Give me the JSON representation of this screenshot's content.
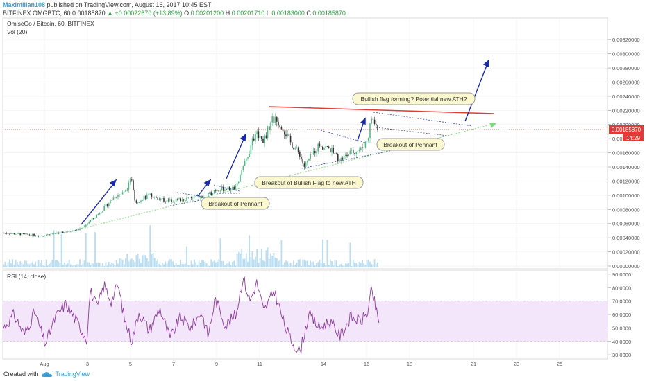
{
  "header": {
    "author": "Maximilian108",
    "published": "published on TradingView.com, August 16, 2017 10:45 EST",
    "symbol": "BITFINEX:OMGBTC, 60",
    "last": "0.00185870",
    "change": "▲ +0.00022670 (+13.89%)",
    "o_label": "O:",
    "o": "0.00201200",
    "h_label": "H:",
    "h": "0.00201710",
    "l_label": "L:",
    "l": "0.00183000",
    "c_label": "C:",
    "c": "0.00185870"
  },
  "pane": {
    "title": "OmiseGo / Bitcoin, 60, BITFINEX",
    "vol_label": "Vol (20)",
    "rsi_label": "RSI (14, close)",
    "price_tag": "0.00185870",
    "timer_tag": "14:29"
  },
  "footer": {
    "created_with": "Created with",
    "brand": "TradingView"
  },
  "colors": {
    "candle_up": "#53b987",
    "candle_down": "#333333",
    "arrow": "#1a2ba8",
    "resistance": "#e53935",
    "rsi_line": "#8e3a9e",
    "rsi_band": "#f3e5fa",
    "volume": "#a8d4ee",
    "support": "#7fdb7f",
    "price_tag": "#e53935"
  },
  "chart_data": [
    {
      "type": "candlestick",
      "x_ticks": [
        "Aug",
        "3",
        "5",
        "7",
        "9",
        "11",
        "14",
        "16",
        "18",
        "21",
        "23",
        "25"
      ],
      "y_ticks": [
        "0.00320000",
        "0.00300000",
        "0.00280000",
        "0.00260000",
        "0.00240000",
        "0.00220000",
        "0.00200000",
        "0.00180000",
        "0.00160000",
        "0.00140000",
        "0.00120000",
        "0.00100000",
        "0.00080000",
        "0.00060000",
        "0.00040000",
        "0.00020000",
        "0.00000000"
      ],
      "ylim": [
        0,
        0.0033
      ],
      "price_path": [
        [
          0,
          0.00047
        ],
        [
          60,
          0.00043
        ],
        [
          115,
          0.00052
        ],
        [
          140,
          0.00072
        ],
        [
          165,
          0.00098
        ],
        [
          180,
          0.00104
        ],
        [
          190,
          0.00124
        ],
        [
          195,
          0.0009
        ],
        [
          215,
          0.001
        ],
        [
          240,
          0.00092
        ],
        [
          260,
          0.00094
        ],
        [
          285,
          0.00098
        ],
        [
          295,
          0.00096
        ],
        [
          310,
          0.00108
        ],
        [
          340,
          0.0011
        ],
        [
          350,
          0.00138
        ],
        [
          362,
          0.0017
        ],
        [
          368,
          0.0019
        ],
        [
          380,
          0.00178
        ],
        [
          392,
          0.00208
        ],
        [
          405,
          0.002
        ],
        [
          418,
          0.00175
        ],
        [
          432,
          0.00158
        ],
        [
          438,
          0.0014
        ],
        [
          450,
          0.00158
        ],
        [
          460,
          0.00172
        ],
        [
          475,
          0.00165
        ],
        [
          490,
          0.0015
        ],
        [
          505,
          0.0016
        ],
        [
          520,
          0.00165
        ],
        [
          530,
          0.0018
        ],
        [
          535,
          0.0021
        ],
        [
          542,
          0.00198
        ],
        [
          546,
          0.00186
        ]
      ],
      "annotations": [
        "Breakout of Pennant",
        "Breakout of Bullish Flag to new ATH",
        "Bullish flag forming? Potential new ATH?",
        "Breakout of Pennant"
      ]
    },
    {
      "type": "line",
      "name": "RSI (14, close)",
      "y_ticks": [
        "90.0000",
        "80.0000",
        "70.0000",
        "60.0000",
        "50.0000",
        "40.0000",
        "30.0000"
      ],
      "ylim": [
        28,
        92
      ],
      "band": [
        40,
        70
      ],
      "values_path": [
        [
          5,
          50
        ],
        [
          20,
          60
        ],
        [
          35,
          45
        ],
        [
          50,
          62
        ],
        [
          65,
          38
        ],
        [
          80,
          58
        ],
        [
          95,
          68
        ],
        [
          110,
          55
        ],
        [
          125,
          42
        ],
        [
          130,
          78
        ],
        [
          140,
          65
        ],
        [
          150,
          82
        ],
        [
          160,
          70
        ],
        [
          170,
          82
        ],
        [
          180,
          55
        ],
        [
          190,
          40
        ],
        [
          200,
          62
        ],
        [
          215,
          48
        ],
        [
          230,
          65
        ],
        [
          245,
          42
        ],
        [
          260,
          58
        ],
        [
          275,
          50
        ],
        [
          290,
          62
        ],
        [
          300,
          44
        ],
        [
          310,
          72
        ],
        [
          325,
          52
        ],
        [
          340,
          60
        ],
        [
          350,
          88
        ],
        [
          360,
          70
        ],
        [
          370,
          84
        ],
        [
          380,
          62
        ],
        [
          395,
          78
        ],
        [
          410,
          52
        ],
        [
          420,
          40
        ],
        [
          432,
          32
        ],
        [
          445,
          60
        ],
        [
          460,
          50
        ],
        [
          475,
          55
        ],
        [
          490,
          44
        ],
        [
          505,
          58
        ],
        [
          520,
          55
        ],
        [
          530,
          62
        ],
        [
          535,
          78
        ],
        [
          540,
          68
        ],
        [
          546,
          52
        ]
      ]
    }
  ]
}
